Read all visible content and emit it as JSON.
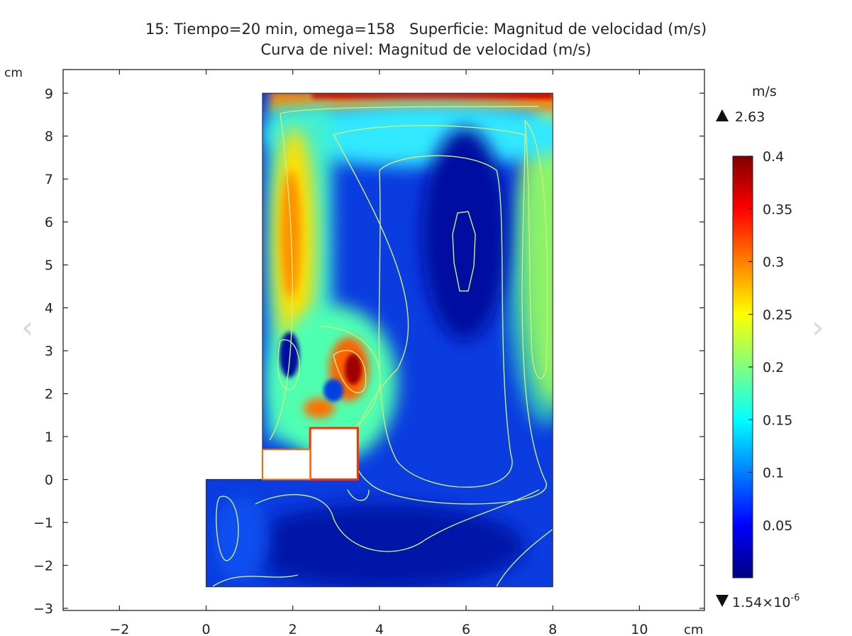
{
  "chart_data": {
    "type": "heatmap",
    "title": "15: Tiempo=20 min, omega=158   Superficie: Magnitud de velocidad (m/s)",
    "subtitle": "Curva de nivel: Magnitud de velocidad (m/s)",
    "x_unit": "cm",
    "y_unit": "cm",
    "xlim": [
      -3.3,
      11.5
    ],
    "ylim": [
      -3.05,
      9.55
    ],
    "x_ticks": [
      -2,
      0,
      2,
      4,
      6,
      8,
      10
    ],
    "y_ticks": [
      -3,
      -2,
      -1,
      0,
      1,
      2,
      3,
      4,
      5,
      6,
      7,
      8,
      9
    ],
    "domain_outline": [
      [
        1.3,
        9.0
      ],
      [
        8.0,
        9.0
      ],
      [
        8.0,
        -2.5
      ],
      [
        0.0,
        -2.5
      ],
      [
        0.0,
        0.0
      ],
      [
        1.3,
        0.0
      ]
    ],
    "domain_notch": [
      [
        1.3,
        0.0
      ],
      [
        2.4,
        0.0
      ],
      [
        2.4,
        0.7
      ],
      [
        1.3,
        0.7
      ]
    ],
    "obstacle_rect": [
      [
        2.4,
        0.0
      ],
      [
        3.5,
        1.2
      ]
    ],
    "colorbar": {
      "unit": "m/s",
      "max_label": "2.63",
      "min_label": "1.54×10",
      "min_label_exp": "-6",
      "ticks": [
        0.05,
        0.1,
        0.15,
        0.2,
        0.25,
        0.3,
        0.35,
        0.4
      ],
      "range": [
        0.0,
        0.4
      ],
      "colormap": [
        "#00007f",
        "#0000ff",
        "#007fff",
        "#00ffff",
        "#7fff7f",
        "#ffff00",
        "#ff7f00",
        "#ff0000",
        "#7f0000"
      ]
    },
    "contour_color": "#c8f07a",
    "colors": {
      "background_flow": "#1040e0",
      "deep_core": "#00108a",
      "fast_wall": "#ff2000"
    }
  },
  "nav": {
    "prev": "‹",
    "next": "›"
  }
}
